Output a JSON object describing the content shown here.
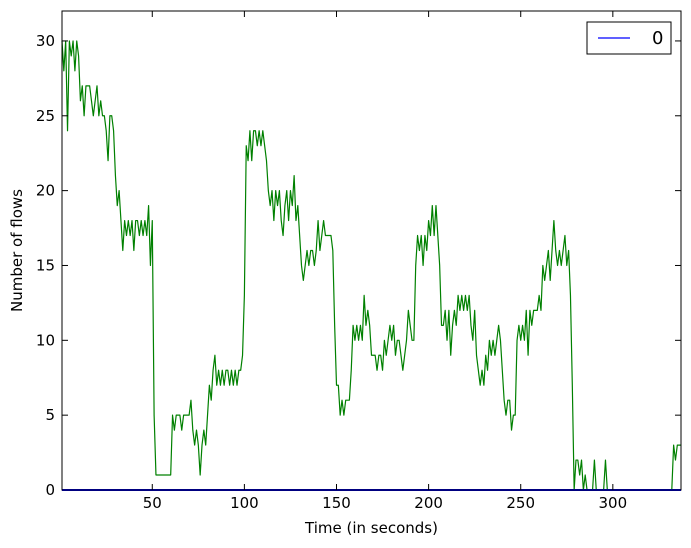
{
  "chart_data": {
    "type": "line",
    "xlabel": "Time (in seconds)",
    "ylabel": "Number of flows",
    "xlim": [
      1,
      337
    ],
    "ylim": [
      0,
      32
    ],
    "x_ticks": [
      50,
      100,
      150,
      200,
      250,
      300
    ],
    "y_ticks": [
      0,
      5,
      10,
      15,
      20,
      25,
      30
    ],
    "grid": false,
    "legend": {
      "placement": "top-right",
      "entries": [
        "0"
      ]
    },
    "series": [
      {
        "name": "0",
        "color": "#0000ff",
        "points": [
          [
            1,
            0
          ],
          [
            337,
            0
          ]
        ]
      },
      {
        "color": "#008000",
        "points": [
          [
            1,
            30
          ],
          [
            2,
            28
          ],
          [
            3,
            30
          ],
          [
            4,
            24
          ],
          [
            5,
            30
          ],
          [
            6,
            29
          ],
          [
            7,
            30
          ],
          [
            8,
            28
          ],
          [
            9,
            30
          ],
          [
            10,
            29
          ],
          [
            11,
            26
          ],
          [
            12,
            27
          ],
          [
            13,
            25
          ],
          [
            14,
            27
          ],
          [
            15,
            27
          ],
          [
            16,
            27
          ],
          [
            17,
            26
          ],
          [
            18,
            25
          ],
          [
            19,
            26
          ],
          [
            20,
            27
          ],
          [
            21,
            25
          ],
          [
            22,
            26
          ],
          [
            23,
            25
          ],
          [
            24,
            25
          ],
          [
            25,
            24
          ],
          [
            26,
            22
          ],
          [
            27,
            25
          ],
          [
            28,
            25
          ],
          [
            29,
            24
          ],
          [
            30,
            21
          ],
          [
            31,
            19
          ],
          [
            32,
            20
          ],
          [
            33,
            18
          ],
          [
            34,
            16
          ],
          [
            35,
            18
          ],
          [
            36,
            17
          ],
          [
            37,
            18
          ],
          [
            38,
            17
          ],
          [
            39,
            18
          ],
          [
            40,
            16
          ],
          [
            41,
            18
          ],
          [
            42,
            18
          ],
          [
            43,
            17
          ],
          [
            44,
            18
          ],
          [
            45,
            17
          ],
          [
            46,
            18
          ],
          [
            47,
            17
          ],
          [
            48,
            19
          ],
          [
            49,
            15
          ],
          [
            50,
            18
          ],
          [
            51,
            5
          ],
          [
            52,
            1
          ],
          [
            55,
            1
          ],
          [
            58,
            1
          ],
          [
            60,
            1
          ],
          [
            61,
            5
          ],
          [
            62,
            4
          ],
          [
            63,
            5
          ],
          [
            65,
            5
          ],
          [
            66,
            4
          ],
          [
            67,
            5
          ],
          [
            70,
            5
          ],
          [
            71,
            6
          ],
          [
            72,
            4
          ],
          [
            73,
            3
          ],
          [
            74,
            4
          ],
          [
            75,
            3
          ],
          [
            76,
            1
          ],
          [
            77,
            3
          ],
          [
            78,
            4
          ],
          [
            79,
            3
          ],
          [
            80,
            5
          ],
          [
            81,
            7
          ],
          [
            82,
            6
          ],
          [
            83,
            8
          ],
          [
            84,
            9
          ],
          [
            85,
            7
          ],
          [
            86,
            8
          ],
          [
            87,
            7
          ],
          [
            88,
            8
          ],
          [
            89,
            7
          ],
          [
            90,
            8
          ],
          [
            91,
            8
          ],
          [
            92,
            7
          ],
          [
            93,
            8
          ],
          [
            94,
            7
          ],
          [
            95,
            8
          ],
          [
            96,
            7
          ],
          [
            97,
            8
          ],
          [
            98,
            8
          ],
          [
            99,
            9
          ],
          [
            100,
            13
          ],
          [
            101,
            23
          ],
          [
            102,
            22
          ],
          [
            103,
            24
          ],
          [
            104,
            22
          ],
          [
            105,
            24
          ],
          [
            106,
            24
          ],
          [
            107,
            23
          ],
          [
            108,
            24
          ],
          [
            109,
            23
          ],
          [
            110,
            24
          ],
          [
            111,
            23
          ],
          [
            112,
            22
          ],
          [
            113,
            20
          ],
          [
            114,
            19
          ],
          [
            115,
            20
          ],
          [
            116,
            18
          ],
          [
            117,
            20
          ],
          [
            118,
            19
          ],
          [
            119,
            20
          ],
          [
            120,
            18
          ],
          [
            121,
            17
          ],
          [
            122,
            19
          ],
          [
            123,
            20
          ],
          [
            124,
            18
          ],
          [
            125,
            20
          ],
          [
            126,
            19
          ],
          [
            127,
            21
          ],
          [
            128,
            18
          ],
          [
            129,
            19
          ],
          [
            130,
            17
          ],
          [
            131,
            15
          ],
          [
            132,
            14
          ],
          [
            133,
            15
          ],
          [
            134,
            16
          ],
          [
            135,
            15
          ],
          [
            136,
            16
          ],
          [
            137,
            16
          ],
          [
            138,
            15
          ],
          [
            139,
            16
          ],
          [
            140,
            18
          ],
          [
            141,
            16
          ],
          [
            142,
            17
          ],
          [
            143,
            18
          ],
          [
            144,
            17
          ],
          [
            145,
            17
          ],
          [
            146,
            17
          ],
          [
            147,
            17
          ],
          [
            148,
            16
          ],
          [
            149,
            11
          ],
          [
            150,
            7
          ],
          [
            151,
            7
          ],
          [
            152,
            5
          ],
          [
            153,
            6
          ],
          [
            154,
            5
          ],
          [
            155,
            6
          ],
          [
            156,
            6
          ],
          [
            157,
            6
          ],
          [
            158,
            8
          ],
          [
            159,
            11
          ],
          [
            160,
            10
          ],
          [
            161,
            11
          ],
          [
            162,
            10
          ],
          [
            163,
            11
          ],
          [
            164,
            10
          ],
          [
            165,
            13
          ],
          [
            166,
            11
          ],
          [
            167,
            12
          ],
          [
            168,
            11
          ],
          [
            169,
            9
          ],
          [
            170,
            9
          ],
          [
            171,
            9
          ],
          [
            172,
            8
          ],
          [
            173,
            9
          ],
          [
            174,
            9
          ],
          [
            175,
            8
          ],
          [
            176,
            10
          ],
          [
            177,
            9
          ],
          [
            178,
            10
          ],
          [
            179,
            11
          ],
          [
            180,
            10
          ],
          [
            181,
            11
          ],
          [
            182,
            9
          ],
          [
            183,
            10
          ],
          [
            184,
            10
          ],
          [
            185,
            9
          ],
          [
            186,
            8
          ],
          [
            187,
            9
          ],
          [
            188,
            10
          ],
          [
            189,
            12
          ],
          [
            190,
            11
          ],
          [
            191,
            10
          ],
          [
            192,
            10
          ],
          [
            193,
            15
          ],
          [
            194,
            17
          ],
          [
            195,
            16
          ],
          [
            196,
            17
          ],
          [
            197,
            15
          ],
          [
            198,
            17
          ],
          [
            199,
            16
          ],
          [
            200,
            18
          ],
          [
            201,
            17
          ],
          [
            202,
            19
          ],
          [
            203,
            17
          ],
          [
            204,
            19
          ],
          [
            205,
            17
          ],
          [
            206,
            15
          ],
          [
            207,
            11
          ],
          [
            208,
            11
          ],
          [
            209,
            12
          ],
          [
            210,
            10
          ],
          [
            211,
            12
          ],
          [
            212,
            9
          ],
          [
            213,
            11
          ],
          [
            214,
            12
          ],
          [
            215,
            11
          ],
          [
            216,
            13
          ],
          [
            217,
            12
          ],
          [
            218,
            13
          ],
          [
            219,
            12
          ],
          [
            220,
            13
          ],
          [
            221,
            12
          ],
          [
            222,
            13
          ],
          [
            223,
            11
          ],
          [
            224,
            10
          ],
          [
            225,
            12
          ],
          [
            226,
            9
          ],
          [
            227,
            8
          ],
          [
            228,
            7
          ],
          [
            229,
            8
          ],
          [
            230,
            7
          ],
          [
            231,
            9
          ],
          [
            232,
            8
          ],
          [
            233,
            10
          ],
          [
            234,
            9
          ],
          [
            235,
            10
          ],
          [
            236,
            9
          ],
          [
            237,
            10
          ],
          [
            238,
            11
          ],
          [
            239,
            10
          ],
          [
            240,
            8
          ],
          [
            241,
            6
          ],
          [
            242,
            5
          ],
          [
            243,
            6
          ],
          [
            244,
            6
          ],
          [
            245,
            4
          ],
          [
            246,
            5
          ],
          [
            247,
            5
          ],
          [
            248,
            10
          ],
          [
            249,
            11
          ],
          [
            250,
            10
          ],
          [
            251,
            11
          ],
          [
            252,
            10
          ],
          [
            253,
            12
          ],
          [
            254,
            9
          ],
          [
            255,
            12
          ],
          [
            256,
            11
          ],
          [
            257,
            12
          ],
          [
            258,
            12
          ],
          [
            259,
            12
          ],
          [
            260,
            13
          ],
          [
            261,
            12
          ],
          [
            262,
            15
          ],
          [
            263,
            14
          ],
          [
            264,
            15
          ],
          [
            265,
            16
          ],
          [
            266,
            14
          ],
          [
            267,
            16
          ],
          [
            268,
            18
          ],
          [
            269,
            16
          ],
          [
            270,
            15
          ],
          [
            271,
            16
          ],
          [
            272,
            15
          ],
          [
            273,
            16
          ],
          [
            274,
            17
          ],
          [
            275,
            15
          ],
          [
            276,
            16
          ],
          [
            277,
            13
          ],
          [
            278,
            7
          ],
          [
            279,
            0
          ],
          [
            280,
            2
          ],
          [
            281,
            2
          ],
          [
            282,
            1
          ],
          [
            283,
            2
          ],
          [
            284,
            0
          ],
          [
            285,
            1
          ],
          [
            286,
            0
          ],
          [
            289,
            0
          ],
          [
            290,
            2
          ],
          [
            291,
            0
          ],
          [
            295,
            0
          ],
          [
            296,
            2
          ],
          [
            297,
            0
          ],
          [
            332,
            0
          ],
          [
            333,
            3
          ],
          [
            334,
            2
          ],
          [
            335,
            3
          ],
          [
            337,
            3
          ]
        ]
      }
    ]
  }
}
